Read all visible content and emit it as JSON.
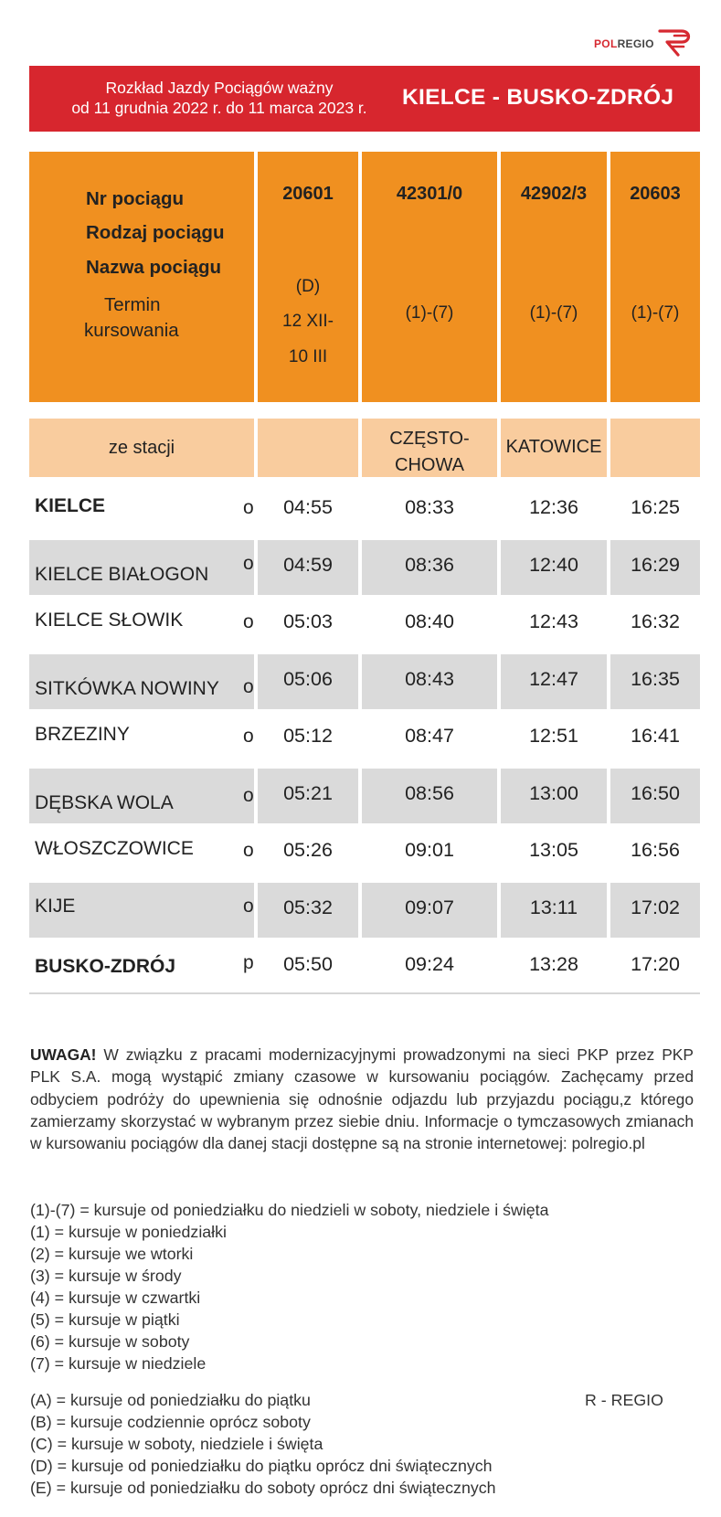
{
  "brand": {
    "name_pol": "POL",
    "name_regio": "REGIO"
  },
  "banner": {
    "validity_line1": "Rozkład Jazdy Pociągów  ważny",
    "validity_line2": "od 11 grudnia 2022 r. do 11 marca 2023 r.",
    "route": "KIELCE - BUSKO-ZDRÓJ"
  },
  "header": {
    "labels": {
      "train_no": "Nr pociągu",
      "train_type": "Rodzaj pociągu",
      "train_name": "Nazwa pociągu",
      "term_line1": "Termin",
      "term_line2": "kursowania"
    },
    "trains": [
      {
        "number": "20601",
        "term": [
          "(D)",
          "12 XII-",
          "10 III"
        ]
      },
      {
        "number": "42301/0",
        "term": [
          "(1)-(7)"
        ]
      },
      {
        "number": "42902/3",
        "term": [
          "(1)-(7)"
        ]
      },
      {
        "number": "20603",
        "term": [
          "(1)-(7)"
        ]
      }
    ]
  },
  "from_station": {
    "label": "ze stacji",
    "values": [
      "",
      "CZĘSTO-\nCHOWA",
      "KATOWICE",
      ""
    ]
  },
  "stops": [
    {
      "station": "KIELCE",
      "bold": true,
      "ind": "o",
      "times": [
        "04:55",
        "08:33",
        "12:36",
        "16:25"
      ]
    },
    {
      "station": "KIELCE BIAŁOGON",
      "bold": false,
      "ind": "o",
      "times": [
        "04:59",
        "08:36",
        "12:40",
        "16:29"
      ]
    },
    {
      "station": "KIELCE SŁOWIK",
      "bold": false,
      "ind": "o",
      "times": [
        "05:03",
        "08:40",
        "12:43",
        "16:32"
      ]
    },
    {
      "station": "SITKÓWKA NOWINY",
      "bold": false,
      "ind": "o",
      "times": [
        "05:06",
        "08:43",
        "12:47",
        "16:35"
      ]
    },
    {
      "station": "BRZEZINY",
      "bold": false,
      "ind": "o",
      "times": [
        "05:12",
        "08:47",
        "12:51",
        "16:41"
      ]
    },
    {
      "station": "DĘBSKA WOLA",
      "bold": false,
      "ind": "o",
      "times": [
        "05:21",
        "08:56",
        "13:00",
        "16:50"
      ]
    },
    {
      "station": "WŁOSZCZOWICE",
      "bold": false,
      "ind": "o",
      "times": [
        "05:26",
        "09:01",
        "13:05",
        "16:56"
      ]
    },
    {
      "station": "KIJE",
      "bold": false,
      "ind": "o",
      "times": [
        "05:32",
        "09:07",
        "13:11",
        "17:02"
      ]
    },
    {
      "station": "BUSKO-ZDRÓJ",
      "bold": true,
      "ind": "p",
      "times": [
        "05:50",
        "09:24",
        "13:28",
        "17:20"
      ]
    }
  ],
  "notice": {
    "title": "UWAGA!",
    "text": " W związku z pracami modernizacyjnymi prowadzonymi na sieci PKP przez PKP PLK S.A. mogą wystąpić zmiany czasowe  w kursowaniu pociągów. Zachęcamy przed odbyciem podróży do upewnienia się odnośnie odjazdu lub przyjazdu pociągu,z którego zamierzamy skorzystać w wybranym przez siebie dniu. Informacje o tymczasowych zmianach w kursowaniu pociągów dla danej stacji dostępne są na stronie internetowej: polregio.pl"
  },
  "legend_days": [
    "(1)-(7) = kursuje od poniedziałku do niedzieli w soboty, niedziele i święta",
    "(1) = kursuje w poniedziałki",
    "(2) = kursuje we wtorki",
    "(3) = kursuje w środy",
    "(4) = kursuje w czwartki",
    "(5) = kursuje w piątki",
    "(6) = kursuje w soboty",
    "(7) = kursuje w niedziele"
  ],
  "legend_letters": [
    "(A) = kursuje od poniedziałku do piątku",
    "(B) = kursuje codziennie oprócz soboty",
    "(C) = kursuje w soboty, niedziele i święta",
    "(D) = kursuje od poniedziałku do piątku oprócz dni świątecznych",
    "(E) = kursuje od poniedziałku do soboty oprócz dni świątecznych"
  ],
  "train_category": "R - REGIO",
  "colors": {
    "banner": "#d7262e",
    "header": "#f09020",
    "subheader": "#f9cc9e",
    "row_shade": "#dadada"
  }
}
